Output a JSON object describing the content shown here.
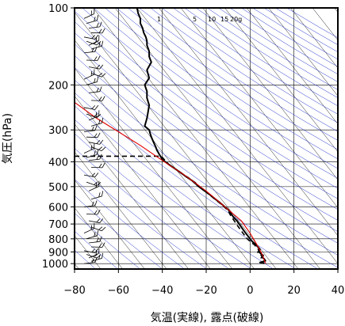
{
  "chart_data": {
    "type": "line",
    "subtype": "skew-T log-p thermodynamic diagram",
    "xlabel": "気温(実線), 露点(破線)",
    "ylabel": "気圧(hPa)",
    "xlim": [
      -80,
      40
    ],
    "ylim_hpa": [
      1050,
      100
    ],
    "y_scale": "log",
    "x_ticks": [
      "−80",
      "−60",
      "−40",
      "−20",
      "0",
      "20",
      "40"
    ],
    "x_tick_values": [
      -80,
      -60,
      -40,
      -20,
      0,
      20,
      40
    ],
    "y_ticks": [
      "100",
      "200",
      "300",
      "400",
      "500",
      "600",
      "700",
      "800",
      "900",
      "1000"
    ],
    "y_tick_values": [
      100,
      200,
      300,
      400,
      500,
      600,
      700,
      800,
      900,
      1000
    ],
    "mixing_ratio_labels": [
      "1",
      "5",
      "10",
      "15",
      "20g"
    ],
    "colors": {
      "temperature": "#000000",
      "dewpoint": "#000000",
      "parcel": "#e00000",
      "dry_adiabats": "#2233cc",
      "isotherms": "#000000",
      "wind_barbs": "#000000"
    },
    "series": [
      {
        "style": "solid",
        "points": [
          [
            -51.5,
            100
          ],
          [
            -51,
            105
          ],
          [
            -50,
            110
          ],
          [
            -50,
            115
          ],
          [
            -49,
            120
          ],
          [
            -48.5,
            125
          ],
          [
            -47.5,
            130
          ],
          [
            -47,
            135
          ],
          [
            -47,
            140
          ],
          [
            -46,
            148
          ],
          [
            -46,
            155
          ],
          [
            -45,
            163
          ],
          [
            -47,
            175
          ],
          [
            -46,
            188
          ],
          [
            -48,
            200
          ],
          [
            -47,
            212
          ],
          [
            -47,
            225
          ],
          [
            -46,
            240
          ],
          [
            -46.5,
            255
          ],
          [
            -47,
            270
          ],
          [
            -48,
            290
          ],
          [
            -46,
            300
          ],
          [
            -45.5,
            310
          ],
          [
            -45,
            320
          ],
          [
            -44,
            335
          ],
          [
            -43,
            350
          ],
          [
            -42.5,
            360
          ],
          [
            -41.5,
            372
          ],
          [
            -40.5,
            385
          ],
          [
            -40,
            392
          ],
          [
            -37,
            410
          ],
          [
            -34,
            427
          ],
          [
            -31,
            445
          ],
          [
            -29,
            458
          ],
          [
            -27,
            470
          ],
          [
            -25,
            483
          ],
          [
            -24,
            495
          ],
          [
            -22,
            510
          ],
          [
            -20,
            525
          ],
          [
            -18,
            540
          ],
          [
            -16,
            558
          ],
          [
            -14,
            575
          ],
          [
            -12,
            595
          ],
          [
            -10,
            615
          ],
          [
            -8.5,
            640
          ],
          [
            -7.5,
            660
          ],
          [
            -6,
            680
          ],
          [
            -5,
            700
          ],
          [
            -4,
            720
          ],
          [
            -3,
            740
          ],
          [
            -2,
            760
          ],
          [
            -1,
            780
          ],
          [
            0,
            800
          ],
          [
            1,
            820
          ],
          [
            2.5,
            840
          ],
          [
            3.5,
            860
          ],
          [
            4.5,
            880
          ],
          [
            4,
            900
          ],
          [
            5,
            915
          ],
          [
            6,
            930
          ],
          [
            5.5,
            945
          ],
          [
            6.5,
            960
          ],
          [
            7,
            975
          ],
          [
            5.5,
            985
          ],
          [
            4.5,
            990
          ],
          [
            6.5,
            998
          ]
        ]
      },
      {
        "style": "dashed",
        "points": [
          [
            -80,
            380
          ],
          [
            -40.5,
            380
          ],
          [
            -37,
            410
          ],
          [
            -34,
            427
          ],
          [
            -31,
            445
          ],
          [
            -28,
            462
          ],
          [
            -26,
            478
          ],
          [
            -24,
            495
          ],
          [
            -22,
            510
          ],
          [
            -20,
            525
          ],
          [
            -18,
            542
          ],
          [
            -16,
            560
          ],
          [
            -14,
            578
          ],
          [
            -12,
            598
          ],
          [
            -10,
            620
          ],
          [
            -9,
            645
          ],
          [
            -8,
            665
          ],
          [
            -7,
            685
          ],
          [
            -6,
            705
          ],
          [
            -5,
            725
          ],
          [
            -4,
            745
          ],
          [
            -3,
            765
          ],
          [
            -2,
            785
          ],
          [
            -1,
            805
          ],
          [
            0.5,
            825
          ],
          [
            2,
            845
          ],
          [
            3,
            865
          ],
          [
            4,
            885
          ],
          [
            3.5,
            905
          ],
          [
            4.5,
            920
          ],
          [
            5.5,
            935
          ],
          [
            5,
            950
          ],
          [
            6,
            965
          ],
          [
            6.5,
            978
          ],
          [
            4.5,
            988
          ],
          [
            6,
            998
          ]
        ]
      },
      {
        "style": "solid-red",
        "points": [
          [
            -80,
            234
          ],
          [
            -70,
            270
          ],
          [
            -60,
            305
          ],
          [
            -50,
            345
          ],
          [
            -40,
            395
          ],
          [
            -30,
            450
          ],
          [
            -20,
            520
          ],
          [
            -10,
            615
          ],
          [
            -4,
            680
          ],
          [
            0,
            760
          ],
          [
            3,
            840
          ],
          [
            5.5,
            920
          ],
          [
            7,
            998
          ]
        ]
      }
    ],
    "wind_barb_levels_hpa": [
      110,
      115,
      120,
      125,
      130,
      135,
      140,
      145,
      150,
      160,
      170,
      180,
      190,
      200,
      215,
      230,
      245,
      260,
      275,
      290,
      305,
      320,
      335,
      350,
      370,
      385,
      395,
      420,
      450,
      480,
      520,
      560,
      600,
      640,
      680,
      720,
      760,
      800,
      830,
      860,
      890,
      920,
      950,
      980,
      1000
    ]
  }
}
